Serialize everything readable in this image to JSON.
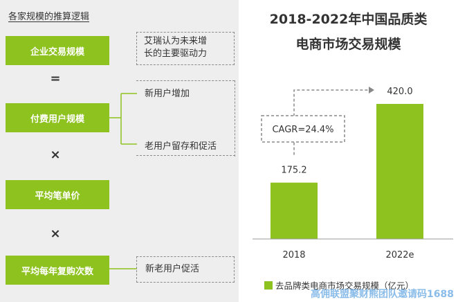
{
  "left": {
    "title": "各家规模的推算逻辑",
    "boxes": [
      "企业交易规模",
      "付费用户规模",
      "平均笔单价",
      "平均每年复购次数"
    ],
    "operators": [
      "=",
      "×",
      "×"
    ],
    "driver_note": [
      "艾瑞认为未来增",
      "长的主要驱动力"
    ],
    "user_factors": [
      "新用户增加",
      "老用户留存和促活"
    ],
    "repurchase_factor": "新老用户促活"
  },
  "chart_data": {
    "type": "bar",
    "title": [
      "2018-2022年中国品质类",
      "电商市场交易规模"
    ],
    "categories": [
      "2018",
      "2022e"
    ],
    "series": [
      {
        "name": "去品牌类电商市场交易规模（亿元）",
        "values": [
          175.2,
          420.0
        ],
        "labels": [
          "175.2",
          "420.0"
        ]
      }
    ],
    "annotation": "CAGR=24.4%",
    "bar_color": "#8dc21f",
    "ylim": [
      0,
      450
    ],
    "legend": "bottom"
  },
  "watermark": "高佣联盟聚财熊团队邀请码1688"
}
